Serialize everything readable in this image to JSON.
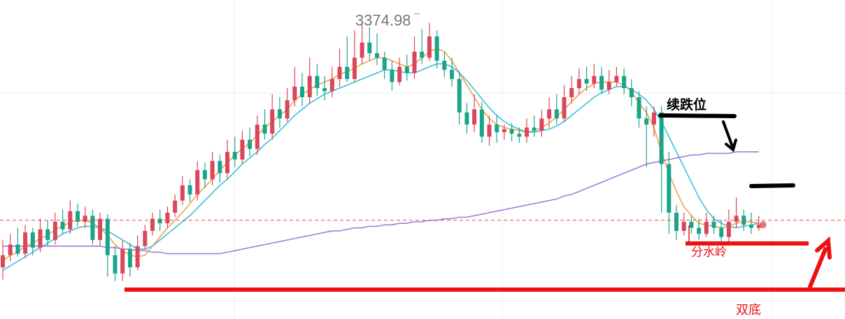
{
  "chart_data": {
    "type": "candlestick",
    "title": "",
    "xlabel": "",
    "ylabel": "",
    "grid": true,
    "price_label": "3374.98",
    "ylim": [
      3180,
      3390
    ],
    "current_price": 3245,
    "colors": {
      "up": "#d9475a",
      "down": "#1aa58a",
      "ma_fast": "#f5a04a",
      "ma_mid": "#3cc0d8",
      "ma_long": "#a37be0",
      "annotation_red": "#ee1111",
      "annotation_black": "#000000",
      "grid": "#e9ecef",
      "price_text": "#777777"
    },
    "candles": [
      [
        3214,
        3222,
        3232,
        3206
      ],
      [
        3222,
        3229,
        3236,
        3218
      ],
      [
        3229,
        3223,
        3240,
        3221
      ],
      [
        3223,
        3237,
        3242,
        3220
      ],
      [
        3237,
        3227,
        3240,
        3222
      ],
      [
        3227,
        3239,
        3246,
        3224
      ],
      [
        3239,
        3232,
        3245,
        3228
      ],
      [
        3232,
        3244,
        3250,
        3229
      ],
      [
        3244,
        3239,
        3252,
        3236
      ],
      [
        3239,
        3251,
        3258,
        3236
      ],
      [
        3251,
        3244,
        3256,
        3241
      ],
      [
        3244,
        3248,
        3254,
        3240
      ],
      [
        3248,
        3232,
        3252,
        3229
      ],
      [
        3232,
        3246,
        3250,
        3228
      ],
      [
        3246,
        3222,
        3249,
        3208
      ],
      [
        3222,
        3210,
        3228,
        3205
      ],
      [
        3210,
        3226,
        3232,
        3205
      ],
      [
        3226,
        3214,
        3230,
        3208
      ],
      [
        3214,
        3228,
        3235,
        3212
      ],
      [
        3228,
        3238,
        3242,
        3226
      ],
      [
        3238,
        3246,
        3250,
        3235
      ],
      [
        3246,
        3243,
        3252,
        3238
      ],
      [
        3243,
        3250,
        3254,
        3240
      ],
      [
        3250,
        3258,
        3262,
        3247
      ],
      [
        3258,
        3268,
        3274,
        3255
      ],
      [
        3268,
        3262,
        3272,
        3257
      ],
      [
        3262,
        3278,
        3284,
        3258
      ],
      [
        3278,
        3272,
        3283,
        3266
      ],
      [
        3272,
        3284,
        3290,
        3268
      ],
      [
        3284,
        3276,
        3288,
        3270
      ],
      [
        3276,
        3290,
        3298,
        3272
      ],
      [
        3290,
        3285,
        3300,
        3280
      ],
      [
        3285,
        3298,
        3304,
        3282
      ],
      [
        3298,
        3292,
        3306,
        3287
      ],
      [
        3292,
        3308,
        3314,
        3288
      ],
      [
        3308,
        3302,
        3318,
        3298
      ],
      [
        3302,
        3318,
        3328,
        3298
      ],
      [
        3318,
        3312,
        3326,
        3306
      ],
      [
        3312,
        3324,
        3332,
        3310
      ],
      [
        3324,
        3333,
        3346,
        3320
      ],
      [
        3333,
        3326,
        3342,
        3320
      ],
      [
        3326,
        3340,
        3352,
        3322
      ],
      [
        3340,
        3332,
        3348,
        3327
      ],
      [
        3332,
        3330,
        3340,
        3324
      ],
      [
        3330,
        3338,
        3346,
        3326
      ],
      [
        3338,
        3346,
        3358,
        3333
      ],
      [
        3346,
        3338,
        3366,
        3336
      ],
      [
        3338,
        3352,
        3370,
        3336
      ],
      [
        3352,
        3362,
        3374,
        3348
      ],
      [
        3362,
        3355,
        3372,
        3350
      ],
      [
        3355,
        3352,
        3368,
        3347
      ],
      [
        3352,
        3344,
        3356,
        3338
      ],
      [
        3344,
        3336,
        3350,
        3330
      ],
      [
        3336,
        3346,
        3352,
        3334
      ],
      [
        3346,
        3342,
        3354,
        3337
      ],
      [
        3342,
        3356,
        3366,
        3338
      ],
      [
        3356,
        3352,
        3371,
        3348
      ],
      [
        3352,
        3366,
        3375,
        3350
      ],
      [
        3366,
        3350,
        3370,
        3345
      ],
      [
        3350,
        3344,
        3356,
        3339
      ],
      [
        3344,
        3338,
        3352,
        3333
      ],
      [
        3338,
        3316,
        3343,
        3308
      ],
      [
        3316,
        3308,
        3322,
        3302
      ],
      [
        3308,
        3318,
        3328,
        3303
      ],
      [
        3318,
        3300,
        3323,
        3296
      ],
      [
        3300,
        3308,
        3314,
        3294
      ],
      [
        3308,
        3303,
        3314,
        3296
      ],
      [
        3303,
        3305,
        3308,
        3298
      ],
      [
        3305,
        3302,
        3309,
        3297
      ],
      [
        3302,
        3300,
        3306,
        3296
      ],
      [
        3300,
        3306,
        3312,
        3296
      ],
      [
        3306,
        3304,
        3314,
        3300
      ],
      [
        3304,
        3312,
        3318,
        3300
      ],
      [
        3312,
        3318,
        3326,
        3306
      ],
      [
        3318,
        3312,
        3328,
        3308
      ],
      [
        3312,
        3326,
        3334,
        3310
      ],
      [
        3326,
        3332,
        3340,
        3322
      ],
      [
        3332,
        3338,
        3345,
        3328
      ],
      [
        3338,
        3335,
        3346,
        3330
      ],
      [
        3335,
        3340,
        3348,
        3332
      ],
      [
        3340,
        3331,
        3346,
        3328
      ],
      [
        3331,
        3336,
        3344,
        3328
      ],
      [
        3336,
        3340,
        3346,
        3333
      ],
      [
        3340,
        3332,
        3345,
        3328
      ],
      [
        3332,
        3326,
        3338,
        3320
      ],
      [
        3326,
        3312,
        3330,
        3306
      ],
      [
        3312,
        3308,
        3320,
        3280
      ],
      [
        3308,
        3316,
        3320,
        3300
      ],
      [
        3316,
        3282,
        3320,
        3250
      ],
      [
        3282,
        3250,
        3290,
        3236
      ],
      [
        3250,
        3238,
        3255,
        3232
      ],
      [
        3238,
        3244,
        3250,
        3235
      ],
      [
        3244,
        3240,
        3248,
        3236
      ],
      [
        3240,
        3236,
        3246,
        3232
      ],
      [
        3236,
        3244,
        3250,
        3234
      ],
      [
        3244,
        3240,
        3248,
        3236
      ],
      [
        3240,
        3234,
        3245,
        3230
      ],
      [
        3234,
        3244,
        3252,
        3230
      ],
      [
        3244,
        3248,
        3260,
        3240
      ],
      [
        3248,
        3242,
        3252,
        3238
      ],
      [
        3242,
        3240,
        3250,
        3236
      ],
      [
        3240,
        3242,
        3248,
        3238
      ]
    ],
    "moving_averages": [
      {
        "values": [
          3218,
          3222,
          3224,
          3228,
          3230,
          3233,
          3235,
          3239,
          3241,
          3244,
          3245,
          3245,
          3243,
          3240,
          3235,
          3229,
          3225,
          3222,
          3221,
          3222,
          3228,
          3234,
          3240,
          3245,
          3250,
          3256,
          3262,
          3267,
          3272,
          3278,
          3283,
          3288,
          3292,
          3296,
          3301,
          3306,
          3310,
          3314,
          3318,
          3324,
          3328,
          3331,
          3334,
          3336,
          3338,
          3341,
          3343,
          3345,
          3348,
          3350,
          3352,
          3352,
          3350,
          3348,
          3346,
          3348,
          3352,
          3356,
          3358,
          3356,
          3350,
          3342,
          3334,
          3326,
          3318,
          3312,
          3308,
          3306,
          3305,
          3304,
          3303,
          3304,
          3306,
          3309,
          3313,
          3318,
          3323,
          3328,
          3332,
          3335,
          3336,
          3336,
          3336,
          3334,
          3330,
          3322,
          3316,
          3306,
          3290,
          3276,
          3264,
          3254,
          3248,
          3243,
          3242,
          3241,
          3240,
          3241,
          3243,
          3244,
          3244,
          3243
        ]
      },
      {
        "values": [
          3212,
          3215,
          3218,
          3221,
          3224,
          3227,
          3230,
          3233,
          3236,
          3238,
          3240,
          3241,
          3241,
          3240,
          3238,
          3235,
          3232,
          3229,
          3226,
          3226,
          3228,
          3232,
          3236,
          3240,
          3244,
          3248,
          3253,
          3258,
          3263,
          3268,
          3272,
          3277,
          3282,
          3286,
          3290,
          3295,
          3299,
          3304,
          3309,
          3314,
          3318,
          3322,
          3325,
          3328,
          3330,
          3332,
          3334,
          3336,
          3338,
          3340,
          3342,
          3344,
          3344,
          3343,
          3342,
          3342,
          3344,
          3346,
          3348,
          3348,
          3346,
          3342,
          3337,
          3331,
          3325,
          3319,
          3314,
          3310,
          3307,
          3305,
          3303,
          3303,
          3304,
          3305,
          3307,
          3310,
          3314,
          3318,
          3322,
          3326,
          3329,
          3331,
          3333,
          3333,
          3331,
          3328,
          3324,
          3318,
          3310,
          3300,
          3290,
          3280,
          3270,
          3260,
          3252,
          3246,
          3243,
          3241,
          3240,
          3241,
          3242,
          3243
        ]
      },
      {
        "values": [
          3228,
          3228,
          3228,
          3228,
          3228,
          3228,
          3228,
          3228,
          3228,
          3228,
          3228,
          3228,
          3228,
          3228,
          3227,
          3227,
          3226,
          3226,
          3225,
          3225,
          3224,
          3224,
          3223,
          3223,
          3223,
          3223,
          3223,
          3223,
          3223,
          3223,
          3224,
          3225,
          3226,
          3227,
          3228,
          3229,
          3230,
          3231,
          3232,
          3233,
          3234,
          3235,
          3236,
          3237,
          3238,
          3238,
          3239,
          3240,
          3240,
          3241,
          3241,
          3242,
          3242,
          3243,
          3243,
          3244,
          3244,
          3245,
          3245,
          3246,
          3246,
          3247,
          3247,
          3248,
          3249,
          3250,
          3251,
          3252,
          3253,
          3254,
          3255,
          3256,
          3257,
          3258,
          3259,
          3261,
          3262,
          3264,
          3266,
          3268,
          3270,
          3272,
          3274,
          3276,
          3278,
          3280,
          3282,
          3283,
          3284,
          3285,
          3286,
          3287,
          3288,
          3288,
          3289,
          3289,
          3289,
          3289,
          3290,
          3290,
          3290,
          3290
        ]
      }
    ],
    "annotations": {
      "resistance_label": "续跌位",
      "watershed_label": "分水岭",
      "double_bottom_label": "双底"
    }
  }
}
